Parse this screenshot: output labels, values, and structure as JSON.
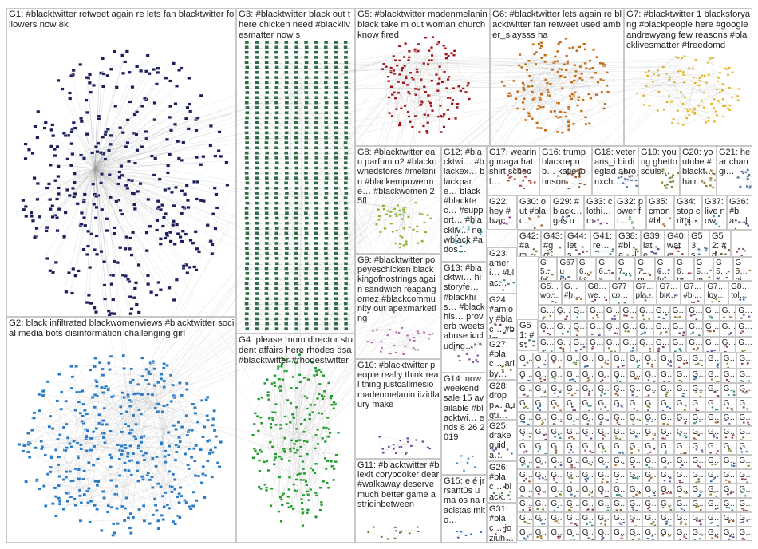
{
  "groups": [
    {
      "id": "G1",
      "label": "G1: #blacktwitter retweet again re lets fan blacktwitter followers now 8k",
      "color": "#1c1f5c"
    },
    {
      "id": "G2",
      "label": "G2: black infiltrated blackwomenviews #blacktwitter social media bots disinformation challenging girl",
      "color": "#2b7bc4"
    },
    {
      "id": "G3",
      "label": "G3: #blacktwitter black out t here chicken need #blacklivesmatter now s",
      "color": "#2e6b45"
    },
    {
      "id": "G4",
      "label": "G4: please mom director student affairs here rhodes dsa #blacktwitter #rhodestwitter",
      "color": "#1f9a2a"
    },
    {
      "id": "G5",
      "label": "G5: #blacktwitter madenmelanin black take m out woman church know fired",
      "color": "#a11419"
    },
    {
      "id": "G6",
      "label": "G6: #blacktwitter lets again re blacktwitter fan retweet used amber_slaysss ha",
      "color": "#c46a12"
    },
    {
      "id": "G7",
      "label": "G7: #blacktwitter 1 blacksforyang #blackpeople here #googleandrewyang few reasons #blacklivesmatter #freedomd",
      "color": "#e0b420"
    },
    {
      "id": "G8",
      "label": "G8: #blacktwitter eau parfum o2 #blackownedstores #melanin #blackempowerme… #blackwomen 2 5fl",
      "color": "#8fb52c"
    },
    {
      "id": "G9",
      "label": "G9: #blacktwitter popeyeschicken black kingofnostrings again sandwich reagangomez #blackcommunity out apexmarketing",
      "color": "#b064a8"
    },
    {
      "id": "G10",
      "label": "G10: #blacktwitter people really think real thing justcallmesio madenmelanin iizidlaury make",
      "color": "#6a3a8c"
    },
    {
      "id": "G11",
      "label": "G11: #blacktwitter #blexit corybooker dear #walkaway deserve much better game astridinbetween",
      "color": "#4a7a2a"
    },
    {
      "id": "G12",
      "label": "G12: #blacktwi… #blackex… blackpare… black #blacktec… #support… #blackliv… newblack #ados…",
      "color": "#3a9ab0"
    },
    {
      "id": "G13",
      "label": "G13: #blacktwi… historyfe… #blackhis… #blackhis… proverb tweets abuse including…",
      "color": "#7a5a9a"
    },
    {
      "id": "G14",
      "label": "G14: now weekend sale 15 available #blacktwi… ends 8 26 2019",
      "color": "#4a8ac0"
    },
    {
      "id": "G15",
      "label": "G15: e é jrrsant0s uma os na racistas mito…",
      "color": "#3a6aa0"
    },
    {
      "id": "G16",
      "label": "G16: trump blackrepub… katie johnson…",
      "color": "#8a5a3a"
    },
    {
      "id": "G17",
      "label": "G17: wearing maga hat shirt school…",
      "color": "#b04a4a"
    },
    {
      "id": "G18",
      "label": "G18: veterans_i birdieglad abronxch…",
      "color": "#5a7aa0"
    },
    {
      "id": "G19",
      "label": "G19: young ghetto souls…",
      "color": "#6a8a3a"
    },
    {
      "id": "G20",
      "label": "G20: youtube #blackt… hair…",
      "color": "#a07a3a"
    },
    {
      "id": "G21",
      "label": "G21: hear changi…",
      "color": "#4a6a9a"
    },
    {
      "id": "G22",
      "label": "G22: hey #blac…",
      "color": "#9a4a8a"
    },
    {
      "id": "G23",
      "label": "G23: ameri… #blac…",
      "color": "#3a8a7a"
    },
    {
      "id": "G24",
      "label": "G24: #amjoy #blac… #blm…",
      "color": "#7a3a3a"
    },
    {
      "id": "G25",
      "label": "G25: drake guida…",
      "color": "#5a5aa0"
    },
    {
      "id": "G26",
      "label": "G26: #blac… black…",
      "color": "#3a7a3a"
    },
    {
      "id": "G27",
      "label": "G27: #blac… arlby…",
      "color": "#8a6a2a"
    },
    {
      "id": "G28",
      "label": "G28: dropp… augu…",
      "color": "#6a3a6a"
    },
    {
      "id": "G29",
      "label": "G29: #black… gas up…",
      "color": "#3a5a8a"
    },
    {
      "id": "G30",
      "label": "G30: out #blac…",
      "color": "#a05a3a"
    },
    {
      "id": "G31",
      "label": "G31: #blac… joziuh…",
      "color": "#9a3a5a"
    },
    {
      "id": "G32",
      "label": "G32: power ft…",
      "color": "#4a9a5a"
    },
    {
      "id": "G33",
      "label": "G33: clothi… m…",
      "color": "#8a4a9a"
    },
    {
      "id": "G34",
      "label": "G34: stop crimi…",
      "color": "#3a6a5a"
    },
    {
      "id": "G35",
      "label": "G35: cmon #bla…",
      "color": "#a0703a"
    },
    {
      "id": "G36",
      "label": "G36: #bla… late…",
      "color": "#5a3a7a"
    },
    {
      "id": "G37",
      "label": "G37: live now…",
      "color": "#3a8aa0"
    },
    {
      "id": "G38",
      "label": "G38: #bla… late…",
      "color": "#7a7a3a"
    },
    {
      "id": "G39",
      "label": "G39: late…",
      "color": "#4a4a8a"
    },
    {
      "id": "G40",
      "label": "G40: watc…",
      "color": "#8a3a3a"
    },
    {
      "id": "G41",
      "label": "G41: re…",
      "color": "#3a7a6a"
    },
    {
      "id": "G42",
      "label": "G42: #am…",
      "color": "#6a6a3a"
    },
    {
      "id": "G43",
      "label": "G43: #go…",
      "color": "#5a7a3a"
    },
    {
      "id": "G44",
      "label": "G44: lets…",
      "color": "#7a4a6a"
    },
    {
      "id": "G50",
      "label": "G50",
      "color": "#3a5a6a"
    },
    {
      "id": "G51",
      "label": "G51: #sp…",
      "color": "#6a5a3a"
    },
    {
      "id": "G52",
      "label": "G52: #d…",
      "color": "#3a6a8a"
    },
    {
      "id": "G53",
      "label": "G53: s…",
      "color": "#8a5a5a"
    }
  ],
  "small_labels": {
    "r1": [
      "G5… fed…",
      "G67 um…",
      "G6… lo…",
      "G6… as…",
      "G7… tw…",
      "G7… mu…",
      "G6… fun…",
      "G6… ta…",
      "G5… mi…",
      "G5… #p…",
      "G5… nic…"
    ],
    "r2": [
      "G5… wo…",
      "G… #b…",
      "G8… we…",
      "G77 co…",
      "G7… pla…",
      "G7… birt…",
      "G7… #bl…",
      "G7… loy…",
      "G8… tol…"
    ],
    "cell_prefix": "G…"
  }
}
